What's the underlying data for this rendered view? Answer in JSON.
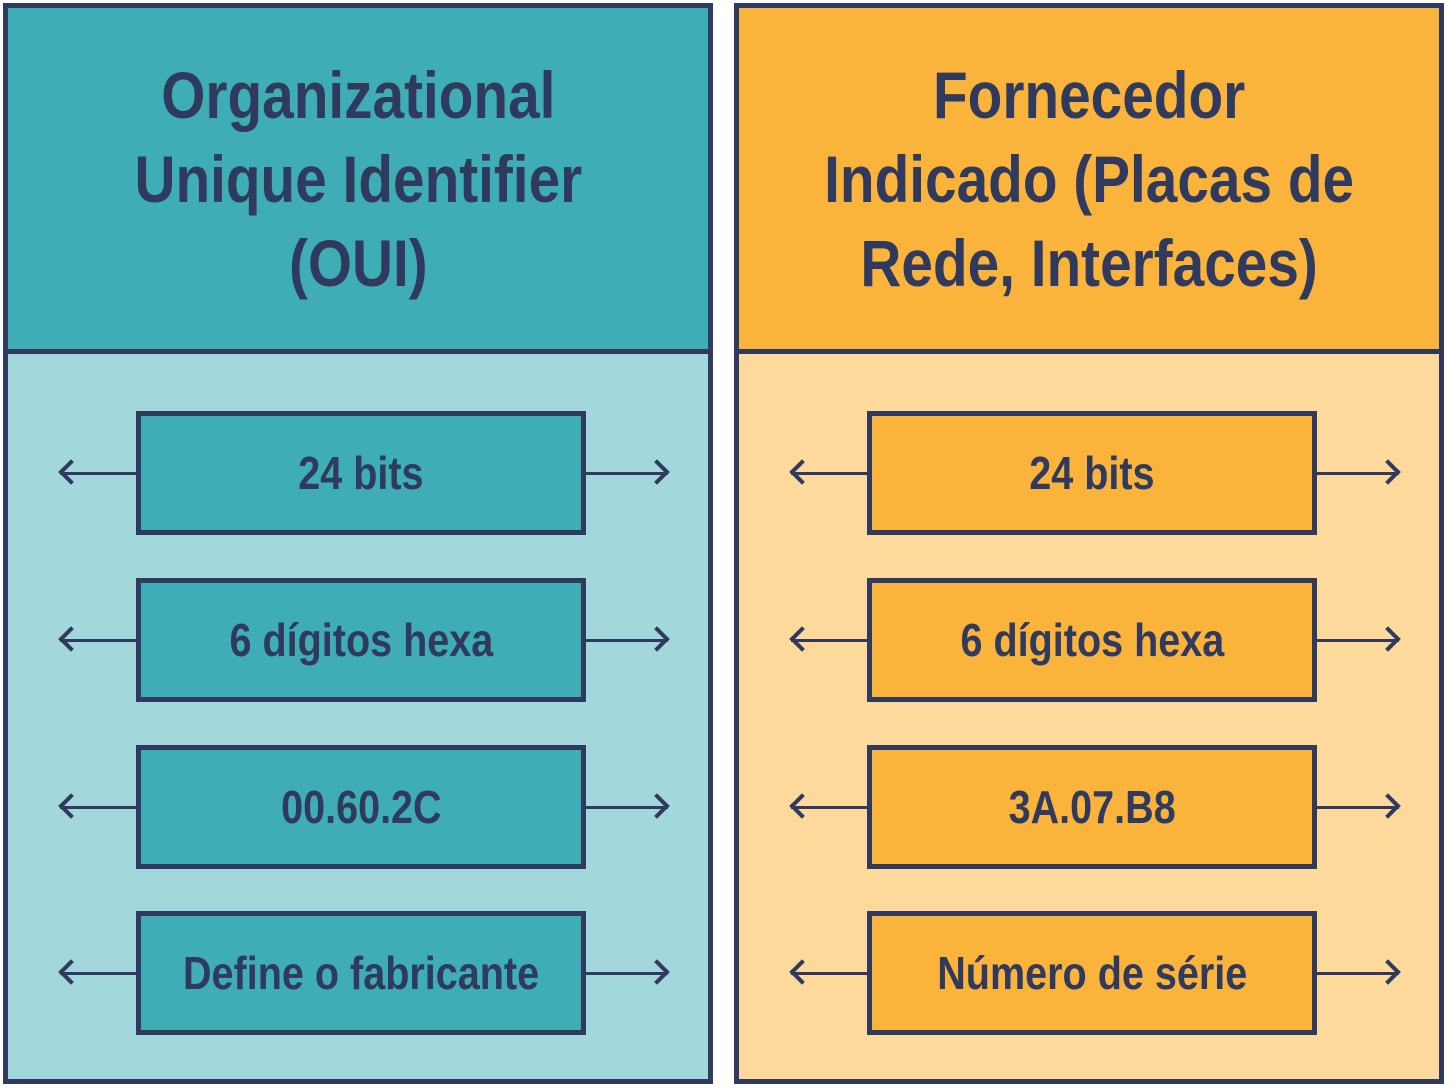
{
  "left_panel": {
    "title_lines": [
      "Organizational",
      "Unique Identifier",
      "(OUI)"
    ],
    "boxes": [
      "24 bits",
      "6 dígitos hexa",
      "00.60.2C",
      "Define o fabricante"
    ]
  },
  "right_panel": {
    "title_lines": [
      "Fornecedor",
      "Indicado (Placas de",
      "Rede, Interfaces)"
    ],
    "boxes": [
      "24 bits",
      "6 dígitos hexa",
      "3A.07.B8",
      "Número de série"
    ]
  },
  "colors": {
    "outline": "#2f3a5e",
    "left_header": "#3eadb6",
    "left_body": "#a2d8db",
    "right_header": "#fbb43b",
    "right_body": "#fdd99c"
  }
}
